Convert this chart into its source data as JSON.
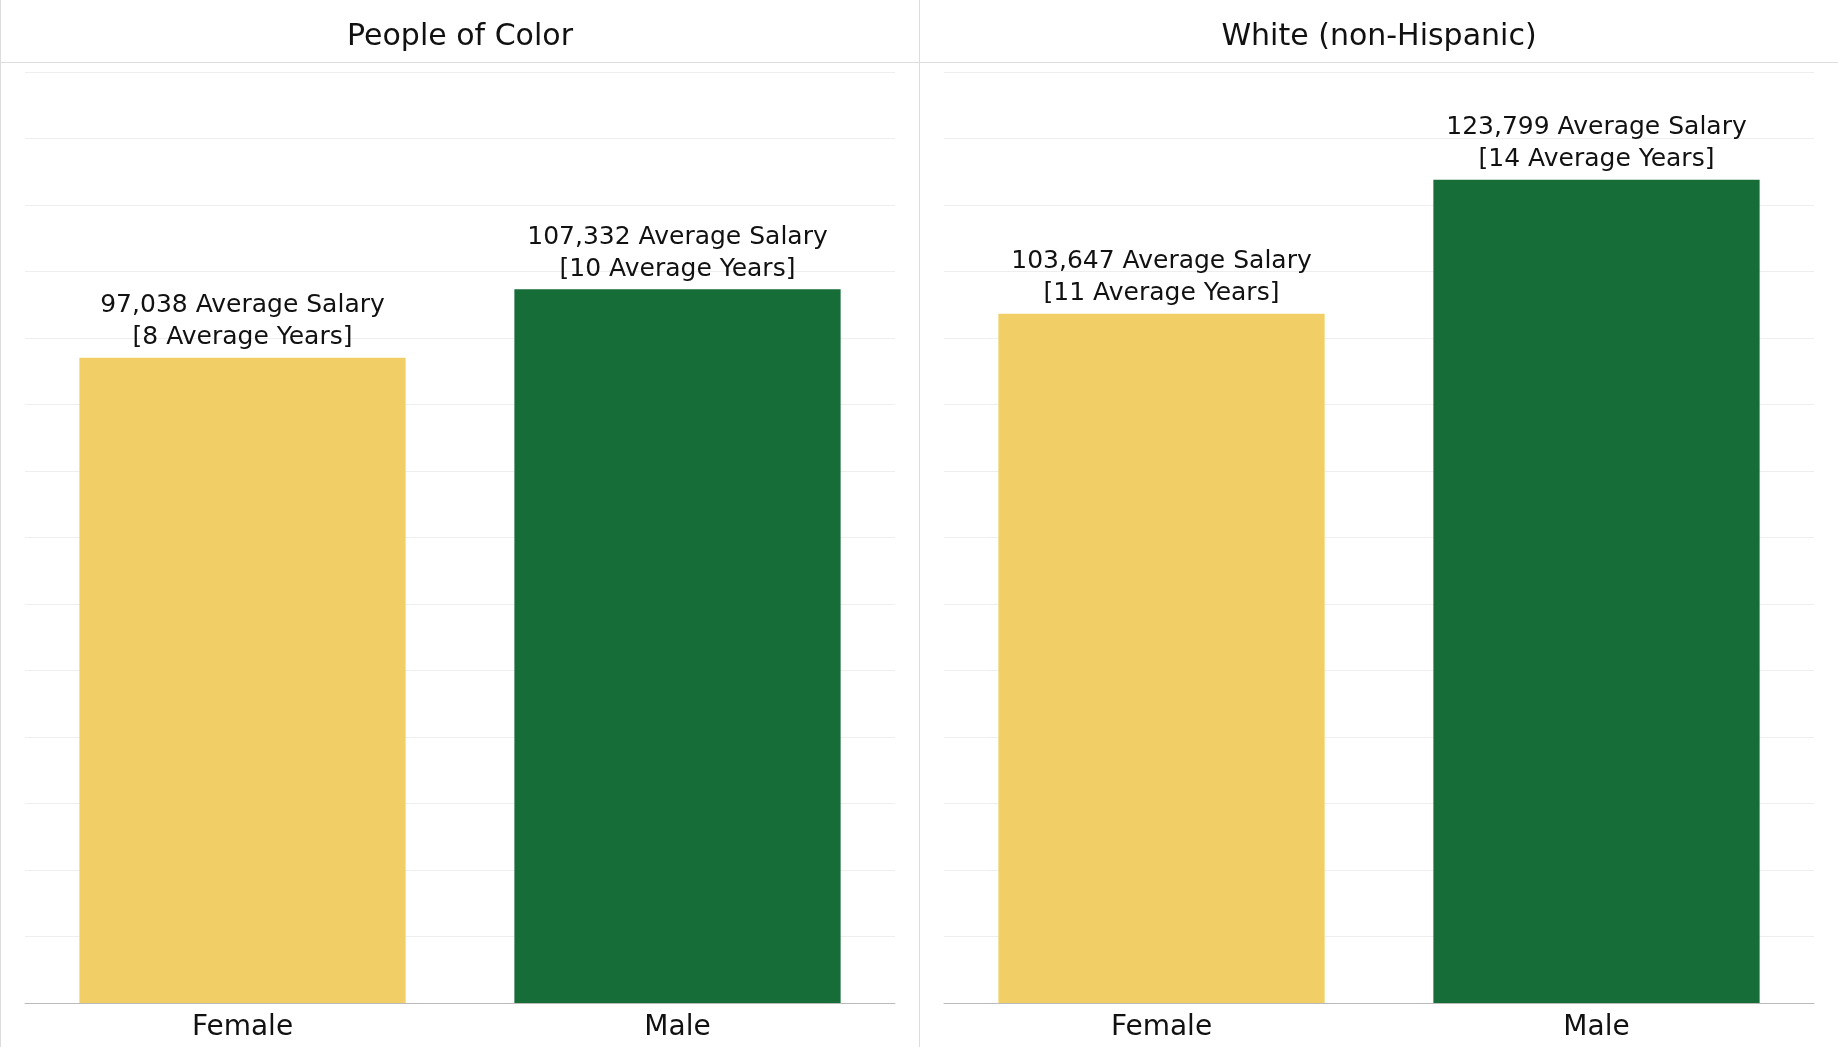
{
  "chart_data": [
    {
      "type": "bar",
      "title": "People of Color",
      "categories": [
        "Female",
        "Male"
      ],
      "values": [
        97038,
        107332
      ],
      "colors": [
        "#f2cf66",
        "#166d38"
      ],
      "value_labels": [
        "97,038 Average Salary\n[8 Average Years]",
        "107,332 Average Salary\n[10 Average Years]"
      ],
      "ylim": [
        0,
        140000
      ],
      "yticks": [
        {
          "value": 0,
          "label": null
        },
        {
          "value": 10000,
          "label": null
        },
        {
          "value": 20000,
          "label": null
        },
        {
          "value": 30000,
          "label": null
        },
        {
          "value": 40000,
          "label": null
        },
        {
          "value": 50000,
          "label": null
        },
        {
          "value": 60000,
          "label": null
        },
        {
          "value": 70000,
          "label": null
        },
        {
          "value": 80000,
          "label": null
        },
        {
          "value": 90000,
          "label": null
        },
        {
          "value": 100000,
          "label": null
        },
        {
          "value": 110000,
          "label": null
        },
        {
          "value": 120000,
          "label": null
        },
        {
          "value": 130000,
          "label": null
        },
        {
          "value": 140000,
          "label": null
        }
      ],
      "grid": "y",
      "tick_labels": "x"
    },
    {
      "type": "bar",
      "title": "White (non-Hispanic)",
      "categories": [
        "Female",
        "Male"
      ],
      "values": [
        103647,
        123799
      ],
      "colors": [
        "#f2cf66",
        "#166d38"
      ],
      "value_labels": [
        "103,647 Average Salary\n[11 Average Years]",
        "123,799 Average Salary\n[14 Average Years]"
      ],
      "ylim": [
        0,
        140000
      ],
      "yticks": [
        {
          "value": 0,
          "label": null
        },
        {
          "value": 10000,
          "label": null
        },
        {
          "value": 20000,
          "label": null
        },
        {
          "value": 30000,
          "label": null
        },
        {
          "value": 40000,
          "label": null
        },
        {
          "value": 50000,
          "label": null
        },
        {
          "value": 60000,
          "label": null
        },
        {
          "value": 70000,
          "label": null
        },
        {
          "value": 80000,
          "label": null
        },
        {
          "value": 90000,
          "label": null
        },
        {
          "value": 100000,
          "label": null
        },
        {
          "value": 110000,
          "label": null
        },
        {
          "value": 120000,
          "label": null
        },
        {
          "value": 130000,
          "label": null
        },
        {
          "value": 140000,
          "label": null
        }
      ],
      "grid": "y",
      "tick_labels": "x"
    }
  ]
}
